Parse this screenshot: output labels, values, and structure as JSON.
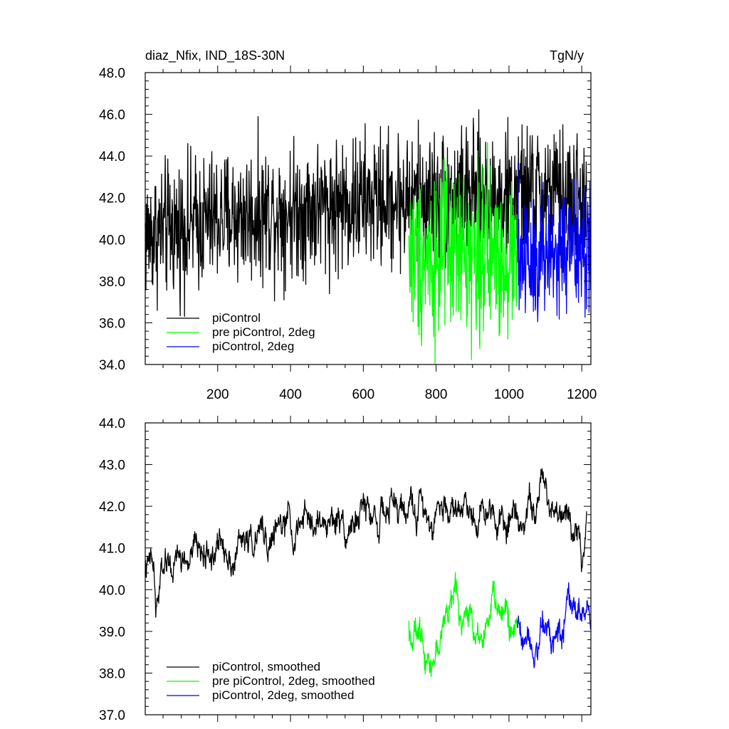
{
  "chart_data": [
    {
      "type": "line",
      "title": "diaz_Nfix, IND_18S-30N",
      "units": "TgN/y",
      "xlim": [
        1,
        1225
      ],
      "ylim": [
        34,
        48
      ],
      "x_ticks": [
        200,
        400,
        600,
        800,
        1000,
        1200
      ],
      "x_tick_labels": [
        "200",
        "400",
        "600",
        "800",
        "1000",
        "1200"
      ],
      "y_ticks": [
        34,
        36,
        38,
        40,
        42,
        44,
        46,
        48
      ],
      "y_tick_labels": [
        "34.0",
        "36.0",
        "38.0",
        "40.0",
        "42.0",
        "44.0",
        "46.0",
        "48.0"
      ],
      "series": [
        {
          "name": "piControl",
          "color": "#000000",
          "x_range": [
            1,
            1213
          ],
          "trend": [
            [
              0,
              40.2
            ],
            [
              100,
              40.6
            ],
            [
              200,
              41.0
            ],
            [
              300,
              41.2
            ],
            [
              400,
              41.4
            ],
            [
              500,
              41.6
            ],
            [
              600,
              41.8
            ],
            [
              700,
              41.9
            ],
            [
              800,
              42.0
            ],
            [
              900,
              42.1
            ],
            [
              1000,
              42.0
            ],
            [
              1100,
              42.2
            ],
            [
              1213,
              41.8
            ]
          ],
          "amplitude": 1.6
        },
        {
          "name": "pre piControl, 2deg",
          "color": "#00ff00",
          "x_range": [
            725,
            1023
          ],
          "trend": [
            [
              725,
              39.3
            ],
            [
              800,
              39.2
            ],
            [
              900,
              39.4
            ],
            [
              1023,
              39.2
            ]
          ],
          "amplitude": 2.0
        },
        {
          "name": "piControl, 2deg",
          "color": "#0000ff",
          "x_range": [
            1023,
            1225
          ],
          "trend": [
            [
              1023,
              39.2
            ],
            [
              1100,
              39.3
            ],
            [
              1225,
              39.4
            ]
          ],
          "amplitude": 1.8
        }
      ],
      "legend": [
        "piControl",
        "pre piControl, 2deg",
        "piControl, 2deg"
      ],
      "legend_position": "bottom-left"
    },
    {
      "type": "line",
      "title": "",
      "xlim": [
        1,
        1225
      ],
      "ylim": [
        37,
        44
      ],
      "x_ticks": [
        200,
        400,
        600,
        800,
        1000,
        1200
      ],
      "x_tick_labels": [],
      "y_ticks": [
        37,
        38,
        39,
        40,
        41,
        42,
        43,
        44
      ],
      "y_tick_labels": [
        "37.0",
        "38.0",
        "39.0",
        "40.0",
        "41.0",
        "42.0",
        "43.0",
        "44.0"
      ],
      "series": [
        {
          "name": "piControl, smoothed",
          "color": "#000000",
          "x_range": [
            1,
            1213
          ],
          "trend": [
            [
              0,
              40.6
            ],
            [
              25,
              40.3
            ],
            [
              30,
              39.2
            ],
            [
              50,
              40.4
            ],
            [
              100,
              40.6
            ],
            [
              200,
              41.0
            ],
            [
              300,
              41.2
            ],
            [
              400,
              41.4
            ],
            [
              500,
              41.6
            ],
            [
              600,
              41.8
            ],
            [
              700,
              41.85
            ],
            [
              800,
              42.0
            ],
            [
              900,
              42.05
            ],
            [
              1000,
              42.0
            ],
            [
              1100,
              42.2
            ],
            [
              1190,
              41.9
            ],
            [
              1200,
              40.7
            ],
            [
              1213,
              41.7
            ]
          ],
          "amplitude": 0.45
        },
        {
          "name": "pre piControl, 2deg, smoothed",
          "color": "#00ff00",
          "x_range": [
            725,
            1023
          ],
          "trend": [
            [
              725,
              39.1
            ],
            [
              760,
              38.8
            ],
            [
              800,
              38.6
            ],
            [
              840,
              39.8
            ],
            [
              900,
              39.1
            ],
            [
              960,
              39.6
            ],
            [
              1023,
              39.0
            ]
          ],
          "amplitude": 0.45
        },
        {
          "name": "piControl, 2deg, smoothed",
          "color": "#0000ff",
          "x_range": [
            1023,
            1225
          ],
          "trend": [
            [
              1023,
              39.1
            ],
            [
              1080,
              39.1
            ],
            [
              1150,
              39.4
            ],
            [
              1190,
              39.5
            ],
            [
              1225,
              39.4
            ]
          ],
          "amplitude": 0.45
        }
      ],
      "legend": [
        "piControl, smoothed",
        "pre piControl, 2deg, smoothed",
        "piControl, 2deg, smoothed"
      ],
      "legend_position": "bottom-left"
    }
  ]
}
